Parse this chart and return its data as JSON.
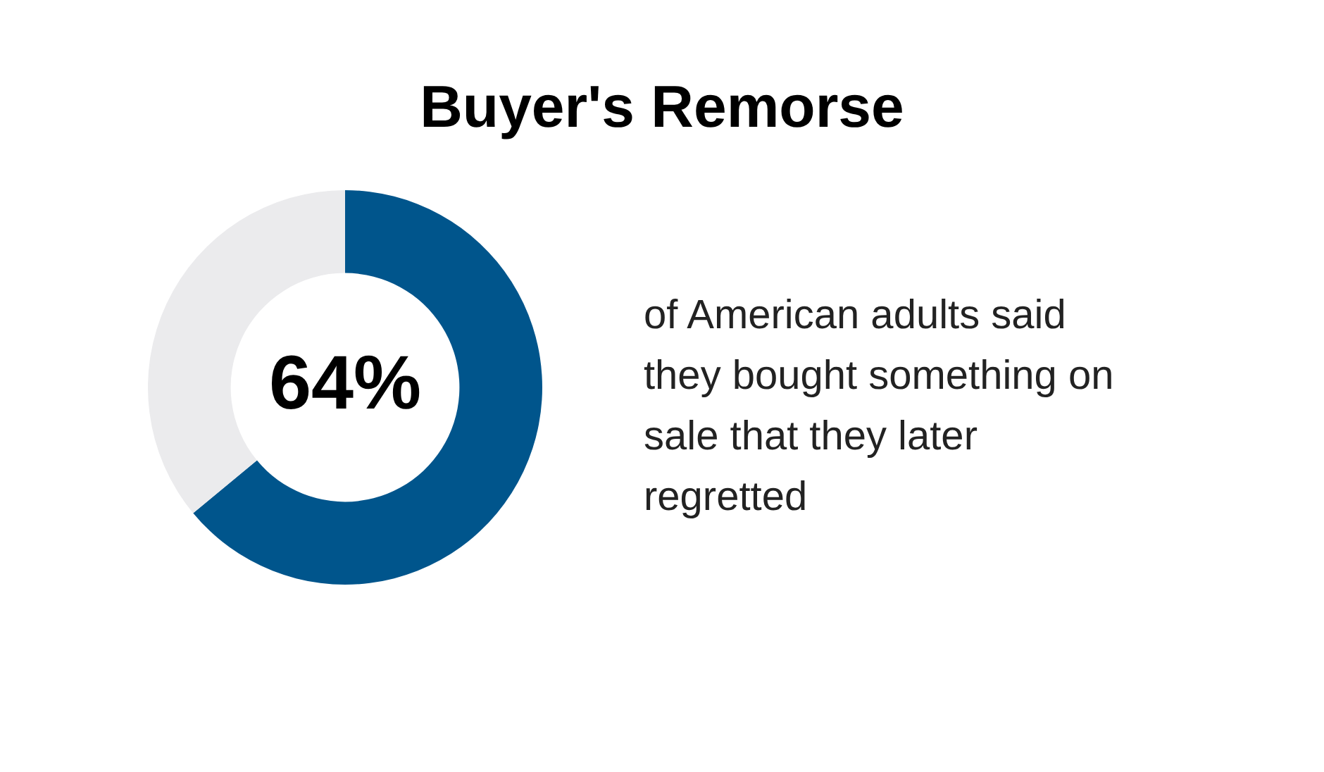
{
  "chart_data": {
    "type": "donut",
    "title": "Buyer's Remorse",
    "categories": [
      null,
      null
    ],
    "values": [
      64,
      36
    ],
    "colors": [
      "#00558c",
      "#ebebed"
    ],
    "value_labels": [
      "64%",
      null
    ],
    "annotations": [
      "of American adults said they bought something on sale that they later regretted"
    ],
    "legend": false
  }
}
